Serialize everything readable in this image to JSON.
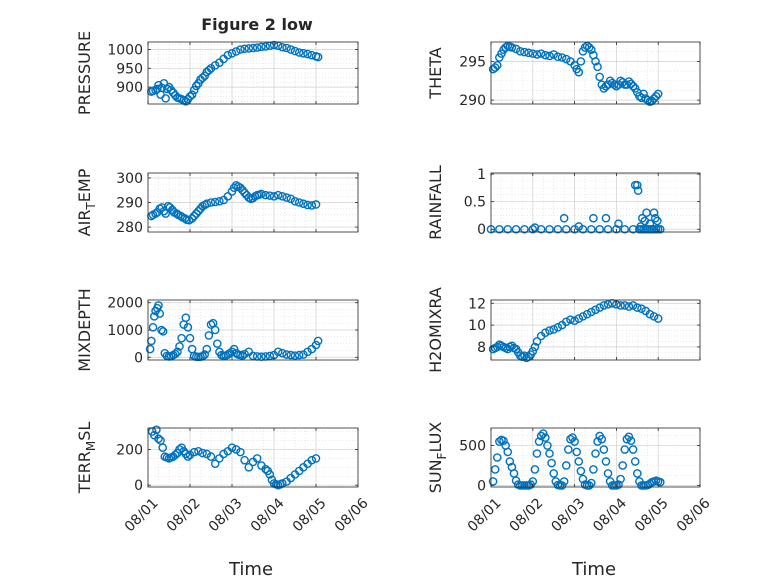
{
  "figure": {
    "title": "Figure 2 low",
    "x_label": "Time",
    "x_ticks": [
      "08/01",
      "08/02",
      "08/03",
      "08/04",
      "08/05",
      "08/06"
    ],
    "marker_color": "#0072BD"
  },
  "chart_data": [
    {
      "type": "scatter",
      "id": "pressure",
      "ylabel": "PRESSURE",
      "title": "Figure 2 low",
      "ylim": [
        855,
        1020
      ],
      "yticks": [
        900,
        950,
        1000
      ],
      "grid": true,
      "xlim": [
        "08/01",
        "08/06"
      ],
      "x": [
        1.08,
        1.12,
        1.18,
        1.22,
        1.25,
        1.3,
        1.33,
        1.38,
        1.42,
        1.46,
        1.5,
        1.55,
        1.6,
        1.65,
        1.7,
        1.75,
        1.8,
        1.85,
        1.9,
        1.95,
        2.0,
        2.05,
        2.1,
        2.15,
        2.2,
        2.25,
        2.3,
        2.35,
        2.4,
        2.45,
        2.5,
        2.6,
        2.7,
        2.8,
        2.9,
        3.0,
        3.1,
        3.2,
        3.3,
        3.4,
        3.5,
        3.6,
        3.7,
        3.8,
        3.9,
        4.0,
        4.1,
        4.2,
        4.3,
        4.4,
        4.5,
        4.6,
        4.7,
        4.8,
        4.9,
        5.0,
        5.05
      ],
      "values": [
        888,
        890,
        892,
        895,
        905,
        880,
        898,
        910,
        870,
        895,
        900,
        892,
        885,
        878,
        872,
        870,
        868,
        865,
        862,
        868,
        875,
        880,
        892,
        903,
        910,
        920,
        925,
        930,
        940,
        945,
        950,
        958,
        965,
        975,
        985,
        990,
        995,
        1000,
        1002,
        1003,
        1004,
        1005,
        1007,
        1008,
        1010,
        1012,
        1010,
        1006,
        1004,
        1000,
        996,
        992,
        990,
        988,
        985,
        982,
        980
      ]
    },
    {
      "type": "scatter",
      "id": "theta",
      "ylabel": "THETA",
      "ylim": [
        289.5,
        297.5
      ],
      "yticks": [
        290,
        295
      ],
      "grid": true,
      "xlim": [
        "08/01",
        "08/06"
      ],
      "x": [
        1.05,
        1.1,
        1.15,
        1.2,
        1.25,
        1.3,
        1.35,
        1.4,
        1.45,
        1.5,
        1.6,
        1.7,
        1.8,
        1.9,
        2.0,
        2.1,
        2.2,
        2.3,
        2.4,
        2.5,
        2.6,
        2.7,
        2.8,
        2.9,
        3.0,
        3.05,
        3.1,
        3.15,
        3.2,
        3.25,
        3.3,
        3.35,
        3.4,
        3.45,
        3.5,
        3.55,
        3.6,
        3.65,
        3.7,
        3.75,
        3.8,
        3.85,
        3.9,
        3.95,
        4.0,
        4.05,
        4.1,
        4.15,
        4.2,
        4.25,
        4.3,
        4.35,
        4.4,
        4.45,
        4.5,
        4.55,
        4.6,
        4.65,
        4.7,
        4.75,
        4.8,
        4.85,
        4.9,
        4.95,
        5.0
      ],
      "values": [
        294.0,
        294.2,
        294.5,
        295.5,
        296.0,
        296.5,
        296.8,
        297.0,
        296.9,
        296.8,
        296.6,
        296.3,
        296.2,
        296.1,
        296.0,
        295.9,
        296.0,
        295.8,
        295.7,
        295.9,
        295.6,
        295.5,
        295.3,
        295.0,
        294.5,
        294.0,
        293.6,
        295.0,
        296.3,
        296.8,
        297.0,
        296.8,
        296.5,
        295.8,
        295.0,
        294.3,
        293.0,
        292.0,
        291.5,
        291.8,
        292.0,
        292.5,
        292.2,
        292.0,
        291.8,
        292.0,
        292.5,
        292.3,
        292.0,
        292.0,
        292.4,
        292.1,
        291.8,
        291.5,
        291.0,
        290.5,
        290.3,
        290.8,
        290.2,
        290.0,
        289.8,
        289.9,
        290.2,
        290.5,
        290.8
      ]
    },
    {
      "type": "scatter",
      "id": "air_temp",
      "ylabel": "AIR_TEMP",
      "ylim": [
        278,
        302
      ],
      "yticks": [
        280,
        290,
        300
      ],
      "grid": true,
      "xlim": [
        "08/01",
        "08/06"
      ],
      "x": [
        1.08,
        1.12,
        1.18,
        1.22,
        1.28,
        1.33,
        1.38,
        1.42,
        1.48,
        1.52,
        1.58,
        1.62,
        1.68,
        1.72,
        1.78,
        1.82,
        1.88,
        1.92,
        1.98,
        2.05,
        2.1,
        2.15,
        2.2,
        2.25,
        2.3,
        2.35,
        2.4,
        2.5,
        2.6,
        2.7,
        2.8,
        2.9,
        3.0,
        3.05,
        3.1,
        3.15,
        3.2,
        3.25,
        3.3,
        3.35,
        3.4,
        3.45,
        3.5,
        3.55,
        3.6,
        3.65,
        3.7,
        3.8,
        3.9,
        4.0,
        4.1,
        4.2,
        4.3,
        4.4,
        4.5,
        4.6,
        4.7,
        4.8,
        4.9,
        5.0
      ],
      "values": [
        284.5,
        285.0,
        285.5,
        286.0,
        287.5,
        288.0,
        286.5,
        285.5,
        288.5,
        288.0,
        287.0,
        286.0,
        285.5,
        285.0,
        284.5,
        284.0,
        283.5,
        283.0,
        282.8,
        283.5,
        284.5,
        285.5,
        286.5,
        287.5,
        288.5,
        289.0,
        289.5,
        290.0,
        290.2,
        290.5,
        291.0,
        292.5,
        294.5,
        296.0,
        297.0,
        296.5,
        296.0,
        295.0,
        294.0,
        293.0,
        292.0,
        291.5,
        291.8,
        292.5,
        293.0,
        293.2,
        293.5,
        293.0,
        292.8,
        292.5,
        293.0,
        292.5,
        292.0,
        291.5,
        290.5,
        290.0,
        289.5,
        289.0,
        288.8,
        289.2
      ]
    },
    {
      "type": "scatter",
      "id": "rainfall",
      "ylabel": "RAINFALL",
      "ylim": [
        -0.05,
        1.02
      ],
      "yticks": [
        0,
        0.5,
        1
      ],
      "grid": true,
      "xlim": [
        "08/01",
        "08/06"
      ],
      "x": [
        1.0,
        1.2,
        1.4,
        1.6,
        1.8,
        2.0,
        2.2,
        2.4,
        2.6,
        2.8,
        3.0,
        3.2,
        3.4,
        3.6,
        3.8,
        4.0,
        4.2,
        4.4,
        4.55,
        4.6,
        4.65,
        4.7,
        4.75,
        4.8,
        4.85,
        4.9,
        4.95,
        5.0,
        5.05,
        2.05,
        2.75,
        3.1,
        3.45,
        3.75,
        4.05,
        4.45,
        4.5,
        4.52,
        4.58,
        4.62,
        4.68,
        4.72,
        4.8,
        4.85,
        4.9,
        4.93,
        4.98
      ],
      "values": [
        0,
        0,
        0,
        0,
        0,
        0,
        0,
        0,
        0,
        0,
        0,
        0,
        0,
        0,
        0,
        0,
        0,
        0,
        0,
        0,
        0,
        0,
        0,
        0,
        0,
        0,
        0,
        0,
        0,
        0.03,
        0.2,
        0.05,
        0.2,
        0.2,
        0.1,
        0.8,
        0.8,
        0.7,
        0.05,
        0.2,
        0.15,
        0.3,
        0.1,
        0.0,
        0.3,
        0.2,
        0.15
      ]
    },
    {
      "type": "scatter",
      "id": "mixdepth",
      "ylabel": "MIXDEPTH",
      "ylim": [
        -100,
        2100
      ],
      "yticks": [
        0,
        1000,
        2000
      ],
      "grid": true,
      "xlim": [
        "08/01",
        "08/06"
      ],
      "x": [
        1.05,
        1.08,
        1.12,
        1.15,
        1.18,
        1.22,
        1.25,
        1.28,
        1.32,
        1.36,
        1.4,
        1.45,
        1.5,
        1.55,
        1.6,
        1.65,
        1.7,
        1.75,
        1.8,
        1.85,
        1.9,
        1.95,
        2.0,
        2.05,
        2.1,
        2.15,
        2.2,
        2.25,
        2.3,
        2.35,
        2.4,
        2.45,
        2.5,
        2.55,
        2.6,
        2.65,
        2.7,
        2.75,
        2.8,
        2.85,
        2.9,
        2.95,
        3.0,
        3.05,
        3.1,
        3.15,
        3.2,
        3.25,
        3.3,
        3.4,
        3.5,
        3.6,
        3.7,
        3.8,
        3.9,
        4.0,
        4.1,
        4.2,
        4.3,
        4.4,
        4.5,
        4.6,
        4.7,
        4.8,
        4.9,
        5.0,
        5.05
      ],
      "values": [
        300,
        600,
        1100,
        1500,
        1700,
        1800,
        1900,
        1600,
        1000,
        950,
        150,
        50,
        30,
        40,
        80,
        120,
        200,
        400,
        700,
        1200,
        1450,
        1100,
        700,
        300,
        50,
        20,
        15,
        20,
        40,
        100,
        300,
        800,
        1200,
        1250,
        1000,
        500,
        200,
        80,
        60,
        60,
        100,
        150,
        200,
        300,
        150,
        100,
        80,
        60,
        120,
        200,
        50,
        30,
        20,
        30,
        50,
        80,
        200,
        150,
        100,
        80,
        60,
        80,
        100,
        200,
        300,
        450,
        600
      ]
    },
    {
      "type": "scatter",
      "id": "h2omixra",
      "ylabel": "H2OMIXRA",
      "ylim": [
        6.8,
        12.3
      ],
      "yticks": [
        8,
        10,
        12
      ],
      "grid": true,
      "xlim": [
        "08/01",
        "08/06"
      ],
      "x": [
        1.05,
        1.1,
        1.15,
        1.2,
        1.25,
        1.3,
        1.35,
        1.4,
        1.45,
        1.5,
        1.55,
        1.6,
        1.65,
        1.7,
        1.75,
        1.8,
        1.85,
        1.9,
        1.95,
        2.0,
        2.05,
        2.1,
        2.2,
        2.3,
        2.4,
        2.5,
        2.6,
        2.7,
        2.8,
        2.9,
        3.0,
        3.1,
        3.2,
        3.3,
        3.4,
        3.5,
        3.6,
        3.7,
        3.8,
        3.9,
        4.0,
        4.1,
        4.2,
        4.3,
        4.4,
        4.5,
        4.6,
        4.7,
        4.8,
        4.9,
        5.0
      ],
      "values": [
        7.8,
        7.9,
        8.0,
        8.2,
        8.1,
        8.0,
        7.9,
        7.8,
        8.0,
        8.1,
        7.9,
        7.8,
        7.5,
        7.2,
        7.1,
        7.2,
        7.0,
        7.1,
        7.3,
        7.6,
        8.0,
        8.5,
        9.0,
        9.3,
        9.5,
        9.6,
        9.8,
        10.0,
        10.3,
        10.5,
        10.4,
        10.6,
        10.8,
        11.0,
        11.2,
        11.4,
        11.6,
        11.8,
        11.9,
        12.0,
        11.9,
        11.8,
        11.8,
        11.7,
        11.8,
        11.6,
        11.5,
        11.3,
        11.0,
        10.8,
        10.6
      ]
    },
    {
      "type": "scatter",
      "id": "terr_msl",
      "ylabel": "TERR_MSL",
      "ylim": [
        -10,
        320
      ],
      "yticks": [
        0,
        200
      ],
      "grid": true,
      "xlim": [
        "08/01",
        "08/06"
      ],
      "x": [
        1.1,
        1.15,
        1.2,
        1.25,
        1.3,
        1.35,
        1.4,
        1.45,
        1.5,
        1.55,
        1.6,
        1.65,
        1.7,
        1.75,
        1.8,
        1.85,
        1.9,
        1.95,
        2.0,
        2.1,
        2.2,
        2.3,
        2.4,
        2.5,
        2.6,
        2.7,
        2.8,
        2.9,
        3.0,
        3.1,
        3.2,
        3.3,
        3.4,
        3.5,
        3.6,
        3.7,
        3.8,
        3.85,
        3.9,
        3.95,
        4.0,
        4.05,
        4.1,
        4.15,
        4.2,
        4.3,
        4.4,
        4.5,
        4.6,
        4.7,
        4.8,
        4.9,
        5.0
      ],
      "values": [
        300,
        280,
        310,
        260,
        250,
        210,
        160,
        155,
        150,
        155,
        160,
        170,
        180,
        200,
        210,
        190,
        175,
        160,
        170,
        185,
        190,
        180,
        175,
        160,
        120,
        150,
        175,
        190,
        210,
        200,
        185,
        140,
        100,
        130,
        150,
        110,
        90,
        80,
        60,
        30,
        10,
        5,
        0,
        5,
        10,
        20,
        40,
        60,
        80,
        100,
        120,
        140,
        150
      ]
    },
    {
      "type": "scatter",
      "id": "sun_flux",
      "ylabel": "SUN_FLUX",
      "ylim": [
        -20,
        720
      ],
      "yticks": [
        0,
        500
      ],
      "grid": true,
      "xlim": [
        "08/01",
        "08/06"
      ],
      "x": [
        1.05,
        1.1,
        1.15,
        1.2,
        1.25,
        1.3,
        1.35,
        1.4,
        1.45,
        1.5,
        1.55,
        1.6,
        1.65,
        1.7,
        1.75,
        1.8,
        1.85,
        1.9,
        1.95,
        2.0,
        2.05,
        2.1,
        2.15,
        2.2,
        2.25,
        2.3,
        2.35,
        2.4,
        2.45,
        2.5,
        2.55,
        2.6,
        2.65,
        2.7,
        2.75,
        2.8,
        2.85,
        2.9,
        2.95,
        3.0,
        3.05,
        3.1,
        3.15,
        3.2,
        3.25,
        3.3,
        3.35,
        3.4,
        3.45,
        3.5,
        3.55,
        3.6,
        3.65,
        3.7,
        3.75,
        3.8,
        3.85,
        3.9,
        3.95,
        4.0,
        4.05,
        4.1,
        4.15,
        4.2,
        4.25,
        4.3,
        4.35,
        4.4,
        4.45,
        4.5,
        4.55,
        4.6,
        4.65,
        4.7,
        4.75,
        4.8,
        4.85,
        4.9,
        4.95,
        5.0,
        5.05
      ],
      "values": [
        50,
        200,
        350,
        550,
        570,
        560,
        500,
        420,
        300,
        230,
        150,
        60,
        10,
        0,
        0,
        0,
        0,
        0,
        10,
        50,
        200,
        400,
        550,
        620,
        650,
        600,
        500,
        400,
        280,
        150,
        50,
        5,
        0,
        0,
        50,
        250,
        450,
        580,
        600,
        550,
        420,
        300,
        180,
        80,
        10,
        0,
        0,
        30,
        200,
        400,
        550,
        620,
        580,
        450,
        300,
        150,
        50,
        0,
        0,
        0,
        10,
        80,
        250,
        450,
        580,
        610,
        560,
        450,
        300,
        150,
        50,
        0,
        0,
        0,
        5,
        20,
        40,
        50,
        60,
        50,
        40
      ]
    }
  ]
}
